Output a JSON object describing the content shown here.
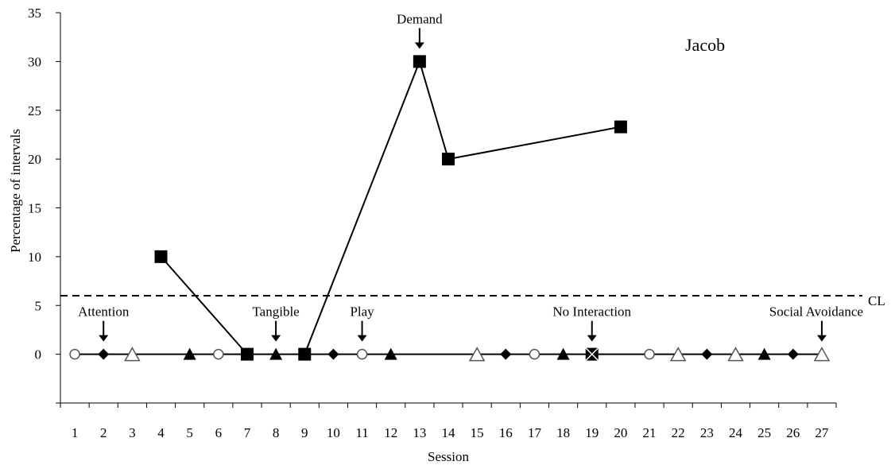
{
  "chart_data": {
    "type": "scatter",
    "participant_label": "Jacob",
    "xlabel": "Session",
    "ylabel": "Percentage of intervals",
    "ylim": [
      -5,
      35
    ],
    "yticks": [
      0,
      5,
      10,
      15,
      20,
      25,
      30,
      35
    ],
    "categories": [
      "1",
      "2",
      "3",
      "4",
      "5",
      "6",
      "7",
      "8",
      "9",
      "10",
      "11",
      "12",
      "13",
      "14",
      "15",
      "16",
      "17",
      "18",
      "19",
      "20",
      "21",
      "22",
      "23",
      "24",
      "25",
      "26",
      "27"
    ],
    "criterion_line": {
      "label": "CL",
      "value": 6
    },
    "series": [
      {
        "marker": "filled-square",
        "points": [
          [
            4,
            10
          ],
          [
            7,
            0
          ],
          [
            9,
            0
          ],
          [
            13,
            30
          ],
          [
            14,
            20
          ],
          [
            20,
            23.3
          ]
        ],
        "segments": [
          [
            0,
            1
          ],
          [
            2,
            3
          ],
          [
            3,
            4
          ],
          [
            4,
            5
          ]
        ]
      },
      {
        "marker": "filled-diamond",
        "points": [
          [
            2,
            0
          ],
          [
            10,
            0
          ],
          [
            16,
            0
          ],
          [
            23,
            0
          ],
          [
            26,
            0
          ]
        ]
      },
      {
        "marker": "open-triangle",
        "points": [
          [
            3,
            0
          ],
          [
            15,
            0
          ],
          [
            22,
            0
          ],
          [
            24,
            0
          ],
          [
            27,
            0
          ]
        ]
      },
      {
        "marker": "filled-triangle",
        "points": [
          [
            5,
            0
          ],
          [
            8,
            0
          ],
          [
            12,
            0
          ],
          [
            18,
            0
          ],
          [
            25,
            0
          ]
        ]
      },
      {
        "marker": "open-circle",
        "points": [
          [
            1,
            0
          ],
          [
            6,
            0
          ],
          [
            11,
            0
          ],
          [
            17,
            0
          ],
          [
            21,
            0
          ]
        ]
      },
      {
        "marker": "x-square",
        "points": [
          [
            19,
            0
          ]
        ]
      }
    ],
    "annotations": [
      {
        "text": "Attention",
        "session": 2,
        "y": 0,
        "text_align": "middle"
      },
      {
        "text": "Tangible",
        "session": 8,
        "y": 0,
        "text_align": "middle"
      },
      {
        "text": "Play",
        "session": 11,
        "y": 0,
        "text_align": "middle"
      },
      {
        "text": "Demand",
        "session": 13,
        "y": 30,
        "text_align": "middle"
      },
      {
        "text": "No Interaction",
        "session": 19,
        "y": 0,
        "text_align": "middle"
      },
      {
        "text": "Social Avoidance",
        "session": 27,
        "y": 0,
        "text_align": "end"
      }
    ],
    "colors": {
      "line": "#000000",
      "marker_fill": "#000000",
      "open_marker_fill": "#ffffff"
    }
  }
}
